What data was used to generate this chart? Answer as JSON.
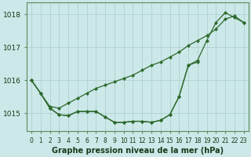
{
  "title": "Graphe pression niveau de la mer (hPa)",
  "xlabel_labels": [
    "0",
    "1",
    "2",
    "3",
    "4",
    "5",
    "6",
    "7",
    "8",
    "9",
    "10",
    "11",
    "12",
    "13",
    "14",
    "15",
    "16",
    "17",
    "18",
    "19",
    "20",
    "21",
    "22",
    "23"
  ],
  "x": [
    0,
    1,
    2,
    3,
    4,
    5,
    6,
    7,
    8,
    9,
    10,
    11,
    12,
    13,
    14,
    15,
    16,
    17,
    18,
    19,
    20,
    21,
    22,
    23
  ],
  "series_straight": [
    1016.0,
    1015.6,
    1015.2,
    1015.15,
    1015.3,
    1015.45,
    1015.6,
    1015.75,
    1015.85,
    1015.95,
    1016.05,
    1016.15,
    1016.3,
    1016.45,
    1016.55,
    1016.7,
    1016.85,
    1017.05,
    1017.2,
    1017.35,
    1017.55,
    1017.85,
    1017.95,
    1017.75
  ],
  "series_curve": [
    1016.0,
    1015.6,
    1015.15,
    1014.95,
    1014.92,
    1015.05,
    1015.05,
    1015.05,
    1014.88,
    1014.72,
    1014.72,
    1014.75,
    1014.75,
    1014.72,
    1014.78,
    1014.95,
    1015.5,
    1016.45,
    1016.6,
    1017.2,
    1017.75,
    1018.05,
    1017.9,
    1017.75
  ],
  "series_short": [
    1016.0,
    1015.6,
    1015.15,
    1014.95,
    1014.92,
    1015.05,
    1015.05,
    1015.05,
    1014.88,
    1014.72,
    1014.72,
    1014.75,
    1014.75,
    1014.72,
    1014.78,
    1014.95,
    1015.5,
    1016.45,
    1016.55,
    null,
    null,
    null,
    null,
    null
  ],
  "line_color": "#2d6a2d",
  "marker_color": "#2d6a2d",
  "bg_color": "#cce8e8",
  "grid_color": "#aacccc",
  "ylim_min": 1014.45,
  "ylim_max": 1018.35,
  "yticks": [
    1015,
    1016,
    1017,
    1018
  ],
  "ylabel_fontsize": 6.5,
  "xlabel_fontsize": 5.5,
  "title_fontsize": 7,
  "marker_size": 2.2,
  "line_width": 0.9
}
